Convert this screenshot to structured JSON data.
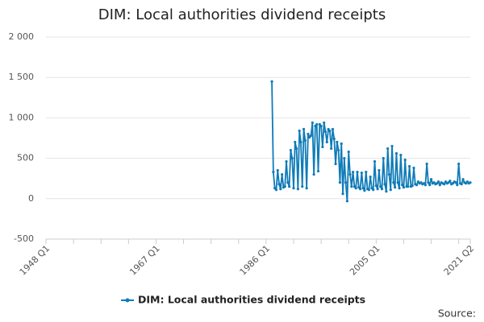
{
  "chart_data": {
    "type": "line",
    "title": "DIM: Local authorities dividend receipts",
    "source": "Source:",
    "categories": [
      "1948 Q1",
      null,
      null,
      null,
      null,
      null,
      null,
      null,
      null,
      null,
      null,
      null,
      null,
      null,
      null,
      null,
      null,
      null,
      null,
      null,
      null,
      null,
      null,
      null,
      null,
      null,
      null,
      null,
      null,
      null,
      null,
      null,
      null,
      null,
      null,
      null,
      null,
      null,
      null,
      null,
      null,
      null,
      null,
      null,
      null,
      null,
      null,
      null,
      null,
      null,
      null,
      null,
      null,
      null,
      null,
      null,
      null,
      null,
      null,
      null,
      null,
      null,
      null,
      null,
      null,
      null,
      null,
      null,
      null,
      null,
      null,
      null,
      null,
      null,
      null,
      null,
      "1967 Q1",
      null,
      null,
      null,
      null,
      null,
      null,
      null,
      null,
      null,
      null,
      null,
      null,
      null,
      null,
      null,
      null,
      null,
      null,
      null,
      null,
      null,
      null,
      null,
      null,
      null,
      null,
      null,
      null,
      null,
      null,
      null,
      null,
      null,
      null,
      null,
      null,
      null,
      null,
      null,
      null,
      null,
      null,
      null,
      null,
      null,
      null,
      null,
      null,
      null,
      null,
      null,
      null,
      null,
      null,
      null,
      null,
      null,
      null,
      null,
      null,
      null,
      null,
      null,
      null,
      null,
      null,
      null,
      null,
      null,
      null,
      null,
      null,
      null,
      null,
      null,
      "1986 Q1",
      null,
      null,
      null,
      null,
      null,
      null,
      null,
      null,
      null,
      null,
      null,
      null,
      null,
      null,
      null,
      null,
      null,
      null,
      null,
      null,
      null,
      null,
      null,
      null,
      null,
      null,
      null,
      null,
      null,
      null,
      null,
      null,
      null,
      null,
      null,
      null,
      null,
      null,
      null,
      null,
      null,
      null,
      null,
      null,
      null,
      null,
      null,
      null,
      null,
      null,
      null,
      null,
      null,
      null,
      null,
      null,
      null,
      null,
      null,
      null,
      null,
      null,
      null,
      null,
      null,
      null,
      null,
      null,
      null,
      null,
      null,
      null,
      null,
      null,
      null,
      "2005 Q1",
      null,
      null,
      null,
      null,
      null,
      null,
      null,
      null,
      null,
      null,
      null,
      null,
      null,
      null,
      null,
      null,
      null,
      null,
      null,
      null,
      null,
      null,
      null,
      null,
      null,
      null,
      null,
      null,
      null,
      null,
      null,
      null,
      null,
      null,
      null,
      null,
      null,
      null,
      null,
      null,
      null,
      null,
      null,
      null,
      null,
      null,
      null,
      null,
      null,
      null,
      null,
      null,
      null,
      null,
      null,
      null,
      null,
      null,
      null,
      null,
      null,
      null,
      null,
      null,
      "2021 Q2"
    ],
    "series": [
      {
        "name": "DIM: Local authorities dividend receipts",
        "color": "#0f7bb8",
        "values": [
          null,
          null,
          null,
          null,
          null,
          null,
          null,
          null,
          null,
          null,
          null,
          null,
          null,
          null,
          null,
          null,
          null,
          null,
          null,
          null,
          null,
          null,
          null,
          null,
          null,
          null,
          null,
          null,
          null,
          null,
          null,
          null,
          null,
          null,
          null,
          null,
          null,
          null,
          null,
          null,
          null,
          null,
          null,
          null,
          null,
          null,
          null,
          null,
          null,
          null,
          null,
          null,
          null,
          null,
          null,
          null,
          null,
          null,
          null,
          null,
          null,
          null,
          null,
          null,
          null,
          null,
          null,
          null,
          null,
          null,
          null,
          null,
          null,
          null,
          null,
          null,
          null,
          null,
          null,
          null,
          null,
          null,
          null,
          null,
          null,
          null,
          null,
          null,
          null,
          null,
          null,
          null,
          null,
          null,
          null,
          null,
          null,
          null,
          null,
          null,
          null,
          null,
          null,
          null,
          null,
          null,
          null,
          null,
          null,
          null,
          null,
          null,
          null,
          null,
          null,
          null,
          null,
          null,
          null,
          null,
          null,
          null,
          null,
          null,
          null,
          null,
          null,
          null,
          null,
          null,
          null,
          null,
          null,
          null,
          null,
          null,
          null,
          null,
          null,
          null,
          null,
          null,
          null,
          null,
          null,
          null,
          null,
          null,
          null,
          null,
          null,
          null,
          null,
          null,
          null,
          null,
          1450,
          330,
          130,
          110,
          350,
          180,
          120,
          300,
          140,
          150,
          460,
          200,
          150,
          600,
          500,
          130,
          700,
          620,
          120,
          840,
          700,
          150,
          860,
          720,
          130,
          800,
          760,
          780,
          940,
          300,
          900,
          920,
          340,
          920,
          900,
          640,
          940,
          830,
          700,
          860,
          840,
          620,
          860,
          740,
          430,
          700,
          600,
          200,
          680,
          60,
          500,
          200,
          -30,
          580,
          300,
          150,
          330,
          150,
          130,
          330,
          140,
          120,
          320,
          130,
          100,
          330,
          120,
          110,
          270,
          130,
          110,
          460,
          160,
          120,
          350,
          150,
          120,
          500,
          180,
          90,
          620,
          300,
          110,
          650,
          200,
          140,
          560,
          200,
          130,
          540,
          170,
          140,
          480,
          150,
          150,
          400,
          150,
          160,
          380,
          180,
          170,
          210,
          190,
          200,
          180,
          190,
          170,
          430,
          200,
          170,
          240,
          190,
          200,
          180,
          190,
          210,
          170,
          200,
          190,
          180,
          210,
          190,
          200,
          220,
          180,
          190,
          210,
          200,
          170,
          430,
          190,
          180,
          240,
          200,
          190,
          210,
          190,
          200
        ]
      }
    ],
    "ylim": [
      -500,
      2000
    ],
    "yticks": [
      {
        "value": -500,
        "label": "-500"
      },
      0,
      500,
      {
        "value": 1000,
        "label": "1 000"
      },
      {
        "value": 1500,
        "label": "1 500"
      },
      {
        "value": 2000,
        "label": "2 000"
      }
    ],
    "grid": true
  }
}
